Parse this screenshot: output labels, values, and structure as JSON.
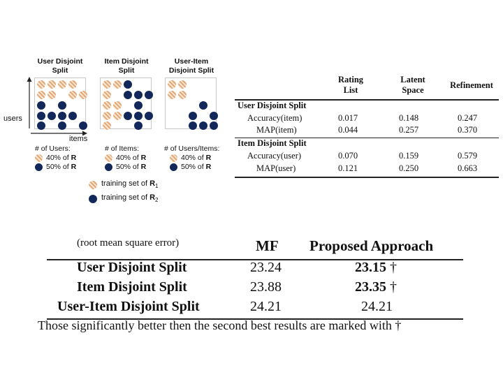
{
  "panels": [
    {
      "title_line1": "User Disjoint",
      "title_line2": "Split",
      "legend_head": "# of Users:",
      "legend_a": "40% of ",
      "legend_b": "50% of ",
      "legend_r": "R"
    },
    {
      "title_line1": "Item Disjoint",
      "title_line2": "Split",
      "legend_head": "# of Items:",
      "legend_a": "40% of ",
      "legend_b": "50% of ",
      "legend_r": "R"
    },
    {
      "title_line1": "User-Item",
      "title_line2": "Disjoint Split",
      "legend_head": "# of Users/Items:",
      "legend_a": "40% of ",
      "legend_b": "50% of ",
      "legend_r": "R"
    }
  ],
  "axes": {
    "users": "users",
    "items": "items"
  },
  "legend": {
    "training_r1": "training set of ",
    "r1": "R",
    "r1_sub": "1",
    "training_r2": "training set of ",
    "r2": "R",
    "r2_sub": "2"
  },
  "table1": {
    "headers": [
      [
        "Rating",
        "List"
      ],
      [
        "Latent",
        "Space"
      ],
      [
        "Refinement"
      ]
    ],
    "sections": [
      {
        "title": "User Disjoint Split",
        "rows": [
          {
            "label": "Accuracy(item)",
            "values": [
              "0.017",
              "0.148",
              "0.247"
            ]
          },
          {
            "label": "MAP(item)",
            "values": [
              "0.044",
              "0.257",
              "0.370"
            ]
          }
        ]
      },
      {
        "title": "Item Disjoint Split",
        "rows": [
          {
            "label": "Accuracy(user)",
            "values": [
              "0.070",
              "0.159",
              "0.579"
            ]
          },
          {
            "label": "MAP(user)",
            "values": [
              "0.121",
              "0.250",
              "0.663"
            ]
          }
        ]
      }
    ]
  },
  "table2": {
    "caption": "(root mean square error)",
    "headers": [
      "MF",
      "Proposed Approach"
    ],
    "rows": [
      {
        "label": "User Disjoint Split",
        "mf": "23.24",
        "proposed": "23.15",
        "mark": " †"
      },
      {
        "label": "Item Disjoint Split",
        "mf": "23.88",
        "proposed": "23.35",
        "mark": " †"
      },
      {
        "label": "User-Item Disjoint Split",
        "mf": "24.21",
        "proposed": "24.21",
        "mark": ""
      }
    ],
    "footnote": "Those significantly better then the second best results are marked with †"
  },
  "colors": {
    "dot": "#12275a",
    "hatch_dark": "#e2a878",
    "hatch_light": "#fbe8d4"
  }
}
